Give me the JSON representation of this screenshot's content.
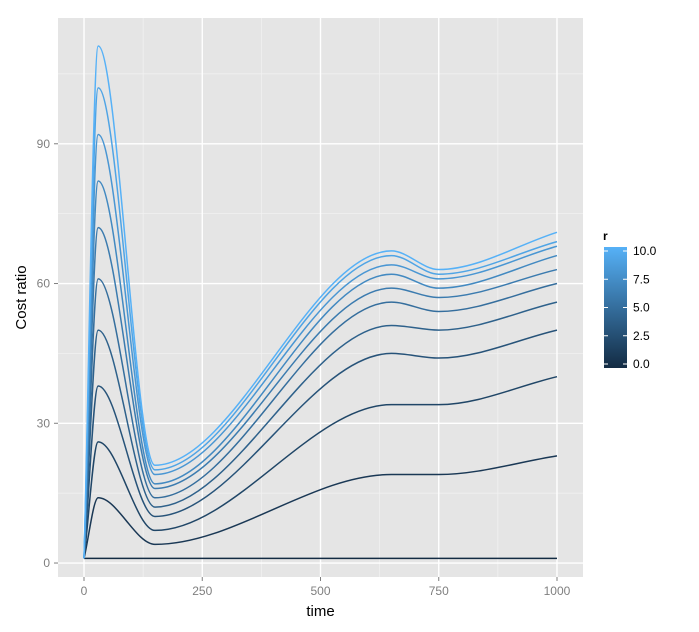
{
  "chart_data": {
    "type": "line",
    "xlabel": "time",
    "ylabel": "Cost ratio",
    "xlim": [
      -55,
      1055
    ],
    "ylim": [
      -3,
      117
    ],
    "x_ticks": [
      0,
      250,
      500,
      750,
      1000
    ],
    "x_tick_labels": [
      "0",
      "250",
      "500",
      "750",
      "1000"
    ],
    "y_ticks": [
      0,
      30,
      60,
      90
    ],
    "y_tick_labels": [
      "0",
      "30",
      "60",
      "90"
    ],
    "grid": true,
    "background": "#e5e5e5",
    "grid_color": "#ffffff",
    "legend": {
      "title": "r",
      "position": "right",
      "type": "colorbar",
      "range": [
        0,
        10
      ],
      "breaks": [
        0,
        2.5,
        5,
        7.5,
        10
      ],
      "break_labels": [
        "0.0",
        "2.5",
        "5.0",
        "7.5",
        "10.0"
      ],
      "low_color": "#132b43",
      "high_color": "#56b1f7"
    },
    "x": [
      0,
      30,
      150,
      650,
      750,
      1000
    ],
    "series": [
      {
        "r": 0,
        "values": [
          1,
          1,
          1,
          1,
          1,
          1
        ]
      },
      {
        "r": 1,
        "values": [
          1,
          14,
          4,
          19,
          19,
          23
        ]
      },
      {
        "r": 2,
        "values": [
          1,
          26,
          7,
          34,
          34,
          40
        ]
      },
      {
        "r": 3,
        "values": [
          1,
          38,
          10,
          45,
          44,
          50
        ]
      },
      {
        "r": 4,
        "values": [
          1,
          50,
          12,
          51,
          50,
          56
        ]
      },
      {
        "r": 5,
        "values": [
          1,
          61,
          14,
          56,
          54,
          60
        ]
      },
      {
        "r": 6,
        "values": [
          1,
          72,
          16,
          59,
          57,
          63
        ]
      },
      {
        "r": 7,
        "values": [
          1,
          82,
          17,
          62,
          59,
          66
        ]
      },
      {
        "r": 8,
        "values": [
          1,
          92,
          19,
          64,
          61,
          68
        ]
      },
      {
        "r": 9,
        "values": [
          1,
          102,
          20,
          66,
          62,
          69
        ]
      },
      {
        "r": 10,
        "values": [
          1,
          111,
          21,
          67,
          63,
          71
        ]
      }
    ]
  }
}
